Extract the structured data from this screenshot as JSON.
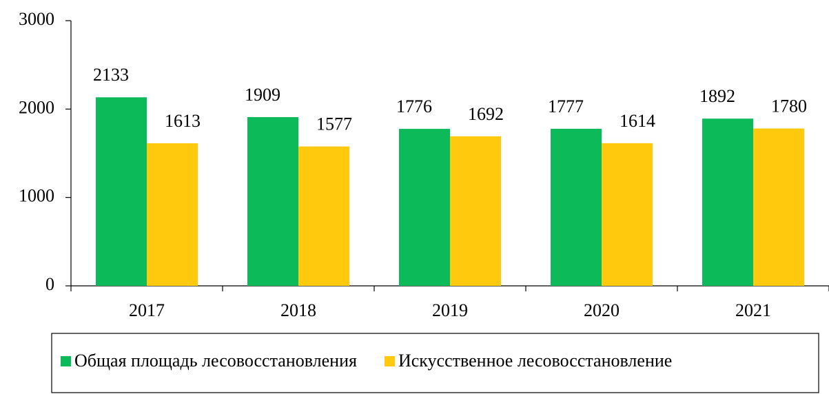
{
  "chart_data": {
    "type": "bar",
    "categories": [
      "2017",
      "2018",
      "2019",
      "2020",
      "2021"
    ],
    "series": [
      {
        "name": "Общая площадь лесовосстановления",
        "color": "#0dba5a",
        "values": [
          2133,
          1909,
          1776,
          1777,
          1892
        ]
      },
      {
        "name": "Искусственное лесовосстановление",
        "color": "#ffc90e",
        "values": [
          1613,
          1577,
          1692,
          1614,
          1780
        ]
      }
    ],
    "ylim": [
      0,
      3000
    ],
    "yticks": [
      0,
      1000,
      2000,
      3000
    ],
    "grid": false
  }
}
